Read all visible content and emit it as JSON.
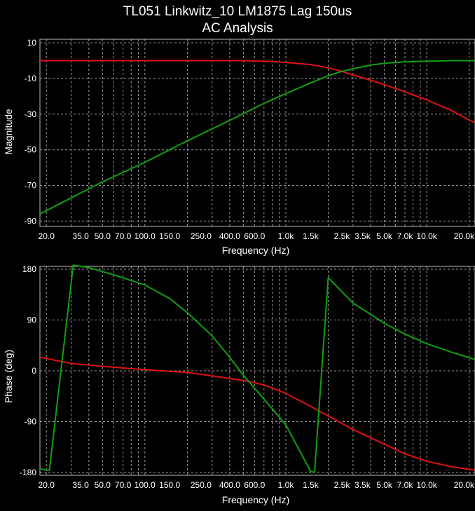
{
  "title_line1": "TL051 Linkwitz_10 LM1875 Lag 150us",
  "title_line2": "AC Analysis",
  "colors": {
    "background": "#000000",
    "text": "#ffffff",
    "grid": "#9a9a9a",
    "red_series": "#e01010",
    "green_series": "#10a010"
  },
  "chart_data": [
    {
      "type": "line",
      "xlabel": "Frequency (Hz)",
      "ylabel": "Magnitude",
      "xscale": "log",
      "xlim": [
        18,
        22000
      ],
      "ylim": [
        -93,
        12
      ],
      "grid": true,
      "x_tick_labels": [
        {
          "v": 20,
          "t": "20.0"
        },
        {
          "v": 35,
          "t": "35.0"
        },
        {
          "v": 50,
          "t": "50.0"
        },
        {
          "v": 70,
          "t": "70.0"
        },
        {
          "v": 100,
          "t": "100.0"
        },
        {
          "v": 150,
          "t": "150.0"
        },
        {
          "v": 250,
          "t": "250.0"
        },
        {
          "v": 400,
          "t": "400.0"
        },
        {
          "v": 600,
          "t": "600.0"
        },
        {
          "v": 1000,
          "t": "1.0k"
        },
        {
          "v": 1500,
          "t": "1.5k"
        },
        {
          "v": 2500,
          "t": "2.5k"
        },
        {
          "v": 3500,
          "t": "3.5k"
        },
        {
          "v": 5000,
          "t": "5.0k"
        },
        {
          "v": 7000,
          "t": "7.0k"
        },
        {
          "v": 10000,
          "t": "10.0k"
        },
        {
          "v": 20000,
          "t": "20.0k"
        }
      ],
      "y_ticks": [
        10,
        -10,
        -30,
        -50,
        -70,
        -90
      ],
      "y_tick_labels": [
        "10",
        "-10",
        "-30",
        "-50",
        "-70",
        "-90"
      ],
      "series": [
        {
          "color": "#e01010",
          "points": [
            [
              18,
              0
            ],
            [
              100,
              0
            ],
            [
              300,
              0
            ],
            [
              500,
              0
            ],
            [
              800,
              -0.5
            ],
            [
              1000,
              -1
            ],
            [
              1500,
              -2.2
            ],
            [
              2000,
              -4
            ],
            [
              2500,
              -6
            ],
            [
              3000,
              -8
            ],
            [
              4000,
              -11
            ],
            [
              5000,
              -13.5
            ],
            [
              7000,
              -17.5
            ],
            [
              10000,
              -22
            ],
            [
              15000,
              -28
            ],
            [
              22000,
              -35
            ]
          ]
        },
        {
          "color": "#10a010",
          "points": [
            [
              18,
              -86
            ],
            [
              30,
              -77
            ],
            [
              50,
              -68
            ],
            [
              100,
              -57
            ],
            [
              200,
              -45
            ],
            [
              400,
              -33.5
            ],
            [
              700,
              -24
            ],
            [
              1000,
              -18.5
            ],
            [
              1500,
              -12.5
            ],
            [
              2000,
              -8.5
            ],
            [
              2500,
              -6
            ],
            [
              3000,
              -4.5
            ],
            [
              4000,
              -2.5
            ],
            [
              5000,
              -1.5
            ],
            [
              7000,
              -0.7
            ],
            [
              10000,
              -0.3
            ],
            [
              15000,
              0
            ],
            [
              22000,
              0
            ]
          ]
        }
      ]
    },
    {
      "type": "line",
      "xlabel": "Frequency (Hz)",
      "ylabel": "Phase (deg)",
      "xscale": "log",
      "xlim": [
        18,
        22000
      ],
      "ylim": [
        -185,
        185
      ],
      "grid": true,
      "x_tick_labels": [
        {
          "v": 20,
          "t": "20.0"
        },
        {
          "v": 35,
          "t": "35.0"
        },
        {
          "v": 50,
          "t": "50.0"
        },
        {
          "v": 70,
          "t": "70.0"
        },
        {
          "v": 100,
          "t": "100.0"
        },
        {
          "v": 150,
          "t": "150.0"
        },
        {
          "v": 250,
          "t": "250.0"
        },
        {
          "v": 400,
          "t": "400.0"
        },
        {
          "v": 600,
          "t": "600.0"
        },
        {
          "v": 1000,
          "t": "1.0k"
        },
        {
          "v": 1500,
          "t": "1.5k"
        },
        {
          "v": 2500,
          "t": "2.5k"
        },
        {
          "v": 3500,
          "t": "3.5k"
        },
        {
          "v": 5000,
          "t": "5.0k"
        },
        {
          "v": 7000,
          "t": "7.0k"
        },
        {
          "v": 10000,
          "t": "10.0k"
        },
        {
          "v": 20000,
          "t": "20.0k"
        }
      ],
      "y_ticks": [
        180,
        90,
        0,
        -90,
        -180
      ],
      "y_tick_labels": [
        "180",
        "90",
        "0",
        "-90",
        "-180"
      ],
      "series": [
        {
          "color": "#e01010",
          "points": [
            [
              18,
              24
            ],
            [
              30,
              13
            ],
            [
              50,
              8
            ],
            [
              100,
              2
            ],
            [
              200,
              -3
            ],
            [
              300,
              -9
            ],
            [
              500,
              -17
            ],
            [
              700,
              -25
            ],
            [
              1000,
              -40
            ],
            [
              1500,
              -63
            ],
            [
              2000,
              -80
            ],
            [
              3000,
              -104
            ],
            [
              5000,
              -130
            ],
            [
              7000,
              -147
            ],
            [
              10000,
              -160
            ],
            [
              15000,
              -170
            ],
            [
              22000,
              -176
            ]
          ]
        },
        {
          "color": "#10a010",
          "points": [
            [
              18,
              -173
            ],
            [
              20,
              -176
            ],
            [
              21,
              -176
            ],
            [
              31,
              187
            ],
            [
              40,
              183
            ],
            [
              60,
              170
            ],
            [
              100,
              152
            ],
            [
              150,
              128
            ],
            [
              200,
              103
            ],
            [
              300,
              62
            ],
            [
              400,
              24
            ],
            [
              500,
              -8
            ],
            [
              700,
              -50
            ],
            [
              1000,
              -96
            ],
            [
              1500,
              -178
            ],
            [
              1600,
              -180
            ],
            [
              2000,
              165
            ],
            [
              2500,
              140
            ],
            [
              3000,
              120
            ],
            [
              4000,
              100
            ],
            [
              5000,
              84
            ],
            [
              7000,
              65
            ],
            [
              10000,
              48
            ],
            [
              15000,
              33
            ],
            [
              22000,
              20
            ]
          ]
        }
      ]
    }
  ]
}
